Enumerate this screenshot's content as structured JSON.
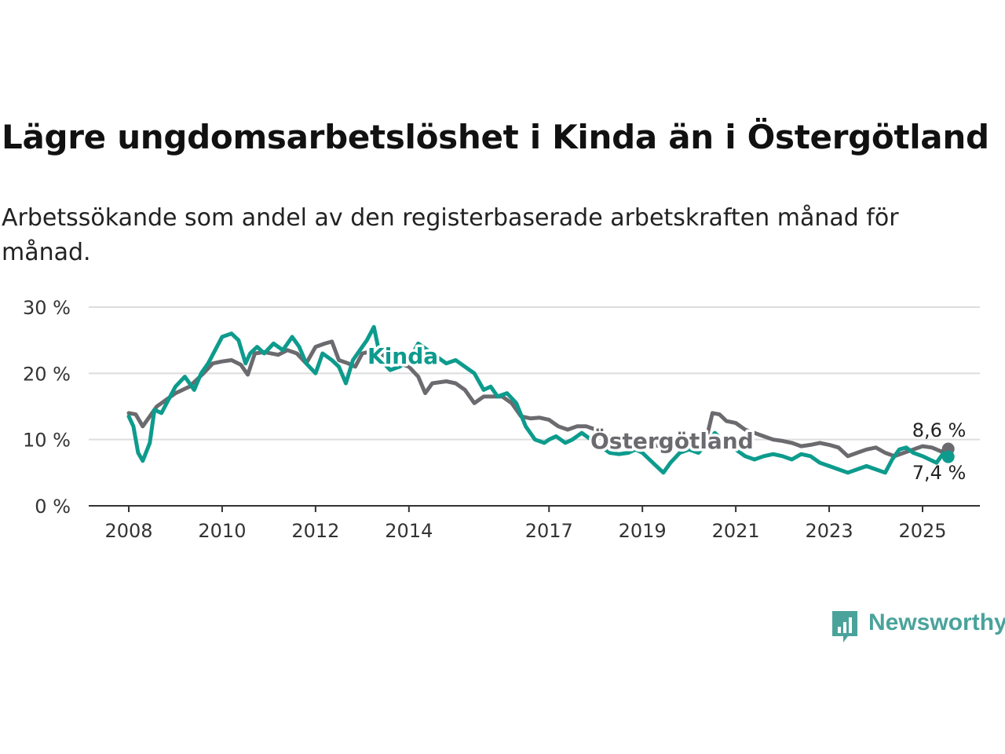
{
  "title": "Lägre ungdomsarbetslöshet i Kinda än i Östergötland",
  "subtitle": "Arbetssökande som andel av den registerbaserade arbetskraften månad för månad.",
  "brand": {
    "name": "Newsworthy",
    "color": "#4aa39b"
  },
  "chart_data": {
    "type": "line",
    "y_unit": "%",
    "ylim": [
      0,
      30
    ],
    "yticks": [
      0,
      10,
      20,
      30
    ],
    "ytick_labels": [
      "0 %",
      "10 %",
      "20 %",
      "30 %"
    ],
    "xlim": [
      2008,
      2025.6
    ],
    "xticks": [
      2008,
      2010,
      2012,
      2014,
      2017,
      2019,
      2021,
      2023,
      2025
    ],
    "xtick_labels": [
      "2008",
      "2010",
      "2012",
      "2014",
      "2017",
      "2019",
      "2021",
      "2023",
      "2025"
    ],
    "grid": true,
    "legend": "inline labels",
    "series": [
      {
        "name": "Östergötland",
        "color": "#6b6a6e",
        "end_label": "8,6 %",
        "points": [
          [
            2008.0,
            14.0
          ],
          [
            2008.15,
            13.8
          ],
          [
            2008.3,
            12.0
          ],
          [
            2008.45,
            13.5
          ],
          [
            2008.6,
            15.0
          ],
          [
            2008.8,
            16.0
          ],
          [
            2009.0,
            17.0
          ],
          [
            2009.3,
            18.0
          ],
          [
            2009.6,
            20.0
          ],
          [
            2009.8,
            21.5
          ],
          [
            2010.0,
            21.8
          ],
          [
            2010.2,
            22.0
          ],
          [
            2010.4,
            21.3
          ],
          [
            2010.55,
            19.8
          ],
          [
            2010.7,
            23.0
          ],
          [
            2010.9,
            23.2
          ],
          [
            2011.2,
            22.8
          ],
          [
            2011.4,
            23.5
          ],
          [
            2011.6,
            23.0
          ],
          [
            2011.8,
            21.5
          ],
          [
            2012.0,
            24.0
          ],
          [
            2012.2,
            24.5
          ],
          [
            2012.35,
            24.8
          ],
          [
            2012.5,
            22.0
          ],
          [
            2012.7,
            21.5
          ],
          [
            2012.85,
            21.0
          ],
          [
            2013.0,
            23.0
          ],
          [
            2013.3,
            23.5
          ],
          [
            2013.6,
            22.0
          ],
          [
            2013.8,
            21.5
          ],
          [
            2014.0,
            21.0
          ],
          [
            2014.2,
            19.5
          ],
          [
            2014.35,
            17.0
          ],
          [
            2014.5,
            18.5
          ],
          [
            2014.8,
            18.8
          ],
          [
            2015.0,
            18.5
          ],
          [
            2015.2,
            17.5
          ],
          [
            2015.4,
            15.5
          ],
          [
            2015.6,
            16.5
          ],
          [
            2015.8,
            16.5
          ],
          [
            2016.0,
            16.5
          ],
          [
            2016.2,
            15.5
          ],
          [
            2016.4,
            13.5
          ],
          [
            2016.6,
            13.2
          ],
          [
            2016.8,
            13.3
          ],
          [
            2017.0,
            13.0
          ],
          [
            2017.2,
            12.0
          ],
          [
            2017.4,
            11.5
          ],
          [
            2017.6,
            12.0
          ],
          [
            2017.8,
            12.0
          ],
          [
            2018.0,
            11.5
          ],
          [
            2018.2,
            10.5
          ],
          [
            2018.4,
            10.3
          ],
          [
            2018.6,
            10.0
          ],
          [
            2018.8,
            9.8
          ],
          [
            2019.0,
            9.5
          ],
          [
            2019.2,
            9.2
          ],
          [
            2019.4,
            9.0
          ],
          [
            2019.6,
            9.2
          ],
          [
            2019.8,
            9.3
          ],
          [
            2020.0,
            9.5
          ],
          [
            2020.2,
            10.0
          ],
          [
            2020.4,
            11.0
          ],
          [
            2020.5,
            14.0
          ],
          [
            2020.65,
            13.8
          ],
          [
            2020.8,
            12.8
          ],
          [
            2021.0,
            12.5
          ],
          [
            2021.2,
            11.5
          ],
          [
            2021.4,
            11.0
          ],
          [
            2021.6,
            10.5
          ],
          [
            2021.8,
            10.0
          ],
          [
            2022.0,
            9.8
          ],
          [
            2022.2,
            9.5
          ],
          [
            2022.4,
            9.0
          ],
          [
            2022.6,
            9.2
          ],
          [
            2022.8,
            9.5
          ],
          [
            2023.0,
            9.2
          ],
          [
            2023.2,
            8.8
          ],
          [
            2023.4,
            7.5
          ],
          [
            2023.6,
            8.0
          ],
          [
            2023.8,
            8.5
          ],
          [
            2024.0,
            8.8
          ],
          [
            2024.2,
            8.0
          ],
          [
            2024.4,
            7.5
          ],
          [
            2024.6,
            8.0
          ],
          [
            2024.8,
            8.5
          ],
          [
            2025.0,
            9.0
          ],
          [
            2025.2,
            8.8
          ],
          [
            2025.4,
            8.2
          ],
          [
            2025.55,
            8.6
          ]
        ]
      },
      {
        "name": "Kinda",
        "color": "#0d9b8d",
        "end_label": "7,4 %",
        "points": [
          [
            2008.0,
            13.5
          ],
          [
            2008.1,
            12.0
          ],
          [
            2008.2,
            8.0
          ],
          [
            2008.3,
            6.8
          ],
          [
            2008.45,
            9.5
          ],
          [
            2008.55,
            14.5
          ],
          [
            2008.7,
            14.0
          ],
          [
            2008.85,
            16.0
          ],
          [
            2009.0,
            18.0
          ],
          [
            2009.2,
            19.5
          ],
          [
            2009.4,
            17.5
          ],
          [
            2009.55,
            20.0
          ],
          [
            2009.7,
            21.5
          ],
          [
            2009.85,
            23.5
          ],
          [
            2010.0,
            25.5
          ],
          [
            2010.2,
            26.0
          ],
          [
            2010.35,
            25.0
          ],
          [
            2010.5,
            21.5
          ],
          [
            2010.6,
            23.0
          ],
          [
            2010.75,
            24.0
          ],
          [
            2010.9,
            23.0
          ],
          [
            2011.1,
            24.5
          ],
          [
            2011.3,
            23.5
          ],
          [
            2011.5,
            25.5
          ],
          [
            2011.65,
            24.0
          ],
          [
            2011.8,
            21.5
          ],
          [
            2012.0,
            20.0
          ],
          [
            2012.15,
            23.0
          ],
          [
            2012.35,
            22.0
          ],
          [
            2012.5,
            21.0
          ],
          [
            2012.65,
            18.5
          ],
          [
            2012.8,
            22.0
          ],
          [
            2012.95,
            23.5
          ],
          [
            2013.1,
            25.0
          ],
          [
            2013.25,
            27.0
          ],
          [
            2013.4,
            22.0
          ],
          [
            2013.6,
            20.5
          ],
          [
            2013.8,
            21.0
          ],
          [
            2014.0,
            22.0
          ],
          [
            2014.2,
            24.5
          ],
          [
            2014.4,
            23.5
          ],
          [
            2014.6,
            22.5
          ],
          [
            2014.8,
            21.5
          ],
          [
            2015.0,
            22.0
          ],
          [
            2015.2,
            21.0
          ],
          [
            2015.4,
            20.0
          ],
          [
            2015.6,
            17.5
          ],
          [
            2015.75,
            18.0
          ],
          [
            2015.9,
            16.5
          ],
          [
            2016.1,
            17.0
          ],
          [
            2016.3,
            15.5
          ],
          [
            2016.5,
            12.0
          ],
          [
            2016.7,
            10.0
          ],
          [
            2016.9,
            9.5
          ],
          [
            2017.0,
            10.0
          ],
          [
            2017.15,
            10.5
          ],
          [
            2017.35,
            9.5
          ],
          [
            2017.5,
            10.0
          ],
          [
            2017.7,
            11.0
          ],
          [
            2017.9,
            10.0
          ],
          [
            2018.1,
            9.0
          ],
          [
            2018.3,
            8.0
          ],
          [
            2018.5,
            7.8
          ],
          [
            2018.7,
            8.0
          ],
          [
            2018.85,
            8.5
          ],
          [
            2019.0,
            8.0
          ],
          [
            2019.15,
            7.0
          ],
          [
            2019.3,
            6.0
          ],
          [
            2019.45,
            5.0
          ],
          [
            2019.6,
            6.5
          ],
          [
            2019.8,
            8.0
          ],
          [
            2020.0,
            8.5
          ],
          [
            2020.2,
            8.0
          ],
          [
            2020.4,
            9.5
          ],
          [
            2020.55,
            11.0
          ],
          [
            2020.7,
            10.0
          ],
          [
            2020.85,
            9.0
          ],
          [
            2021.0,
            8.5
          ],
          [
            2021.2,
            7.5
          ],
          [
            2021.4,
            7.0
          ],
          [
            2021.6,
            7.5
          ],
          [
            2021.8,
            7.8
          ],
          [
            2022.0,
            7.5
          ],
          [
            2022.2,
            7.0
          ],
          [
            2022.4,
            7.8
          ],
          [
            2022.6,
            7.5
          ],
          [
            2022.8,
            6.5
          ],
          [
            2023.0,
            6.0
          ],
          [
            2023.2,
            5.5
          ],
          [
            2023.4,
            5.0
          ],
          [
            2023.6,
            5.5
          ],
          [
            2023.8,
            6.0
          ],
          [
            2024.0,
            5.5
          ],
          [
            2024.2,
            5.0
          ],
          [
            2024.35,
            7.0
          ],
          [
            2024.5,
            8.5
          ],
          [
            2024.65,
            8.8
          ],
          [
            2024.8,
            8.0
          ],
          [
            2025.0,
            7.5
          ],
          [
            2025.15,
            7.0
          ],
          [
            2025.3,
            6.5
          ],
          [
            2025.45,
            8.0
          ],
          [
            2025.55,
            7.4
          ]
        ]
      }
    ]
  }
}
